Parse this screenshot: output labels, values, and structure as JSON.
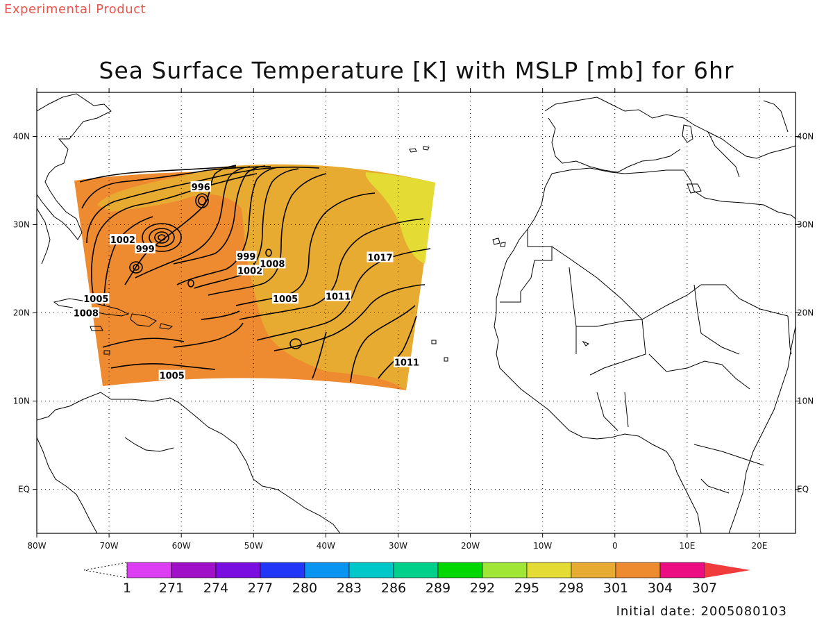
{
  "banner": "Experimental Product",
  "title": "Sea Surface Temperature [K] with MSLP [mb] for 6hr",
  "initial_date_text": "Initial date: 2005080103",
  "map": {
    "lon_range": [
      -80,
      25
    ],
    "lat_range": [
      -5,
      45
    ],
    "lon_ticks": [
      {
        "value": -80,
        "label": "80W"
      },
      {
        "value": -70,
        "label": "70W"
      },
      {
        "value": -60,
        "label": "60W"
      },
      {
        "value": -50,
        "label": "50W"
      },
      {
        "value": -40,
        "label": "40W"
      },
      {
        "value": -30,
        "label": "30W"
      },
      {
        "value": -20,
        "label": "20W"
      },
      {
        "value": -10,
        "label": "10W"
      },
      {
        "value": 0,
        "label": "0"
      },
      {
        "value": 10,
        "label": "10E"
      },
      {
        "value": 20,
        "label": "20E"
      }
    ],
    "lat_ticks": [
      {
        "value": 0,
        "label": "EQ"
      },
      {
        "value": 10,
        "label": "10N"
      },
      {
        "value": 20,
        "label": "20N"
      },
      {
        "value": 30,
        "label": "30N"
      },
      {
        "value": 40,
        "label": "40N"
      }
    ],
    "grid": true,
    "sst_zones": [
      {
        "name": "warm",
        "level": 304,
        "color": "#ee8a2f"
      },
      {
        "name": "mid",
        "level": 301,
        "color": "#e8ab32"
      },
      {
        "name": "cool",
        "level": 298,
        "color": "#e4dc34"
      }
    ],
    "pressure_labels": [
      {
        "text": "996",
        "lon": -57.3,
        "lat": 34.3
      },
      {
        "text": "1002",
        "lon": -68.1,
        "lat": 28.3
      },
      {
        "text": "999",
        "lon": -65.0,
        "lat": 27.3
      },
      {
        "text": "999",
        "lon": -51.0,
        "lat": 26.4
      },
      {
        "text": "1002",
        "lon": -50.5,
        "lat": 24.8
      },
      {
        "text": "1008",
        "lon": -47.4,
        "lat": 25.6
      },
      {
        "text": "1017",
        "lon": -32.5,
        "lat": 26.3
      },
      {
        "text": "1011",
        "lon": -38.3,
        "lat": 21.9
      },
      {
        "text": "1005",
        "lon": -45.6,
        "lat": 21.6
      },
      {
        "text": "1005",
        "lon": -71.8,
        "lat": 21.6
      },
      {
        "text": "1008",
        "lon": -73.2,
        "lat": 20.0
      },
      {
        "text": "1011",
        "lon": -28.8,
        "lat": 14.4
      },
      {
        "text": "1005",
        "lon": -61.3,
        "lat": 12.9
      }
    ]
  },
  "colorbar": {
    "bins": [
      {
        "color": "#dd3ef3"
      },
      {
        "color": "#9f10c8"
      },
      {
        "color": "#7a0ee0"
      },
      {
        "color": "#2236f8"
      },
      {
        "color": "#0a94f2"
      },
      {
        "color": "#00c8c8"
      },
      {
        "color": "#00d08a"
      },
      {
        "color": "#00d800"
      },
      {
        "color": "#a0e637"
      },
      {
        "color": "#e4dc34"
      },
      {
        "color": "#e8ab32"
      },
      {
        "color": "#ee8a2f"
      },
      {
        "color": "#ec0d82"
      }
    ],
    "over_color": "#f03c3c",
    "labels": [
      "1",
      "271",
      "274",
      "277",
      "280",
      "283",
      "286",
      "289",
      "292",
      "295",
      "298",
      "301",
      "304",
      "307"
    ]
  }
}
